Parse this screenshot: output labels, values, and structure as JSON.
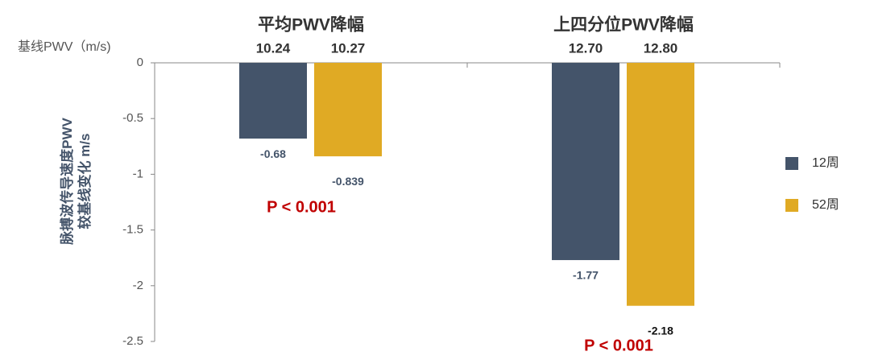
{
  "chart_data": {
    "type": "bar",
    "categories": [
      "平均PWV降幅",
      "上四分位PWV降幅"
    ],
    "baseline_title": "基线PWV（m/s)",
    "ylabel": [
      "脉搏波传导速度PWV",
      "较基线变化 m/s"
    ],
    "series": [
      {
        "name": "12周",
        "color": "#44546a",
        "values": [
          -0.68,
          -1.77
        ],
        "baseline": [
          {
            "value": 10.24,
            "label": "10.24"
          },
          {
            "value": 12.7,
            "label": "12.70"
          }
        ]
      },
      {
        "name": "52周",
        "color": "#e0aa24",
        "values": [
          -0.839,
          -2.18
        ],
        "baseline": [
          {
            "value": 10.27,
            "label": "10.27"
          },
          {
            "value": 12.8,
            "label": "12.80"
          }
        ]
      }
    ],
    "annotations": [
      "P < 0.001",
      "P < 0.001"
    ],
    "annotation_color": "#c00000",
    "ylim": [
      -2.5,
      0
    ],
    "yticks": [
      0,
      -0.5,
      -1,
      -1.5,
      -2,
      -2.5
    ],
    "legend": "right"
  }
}
